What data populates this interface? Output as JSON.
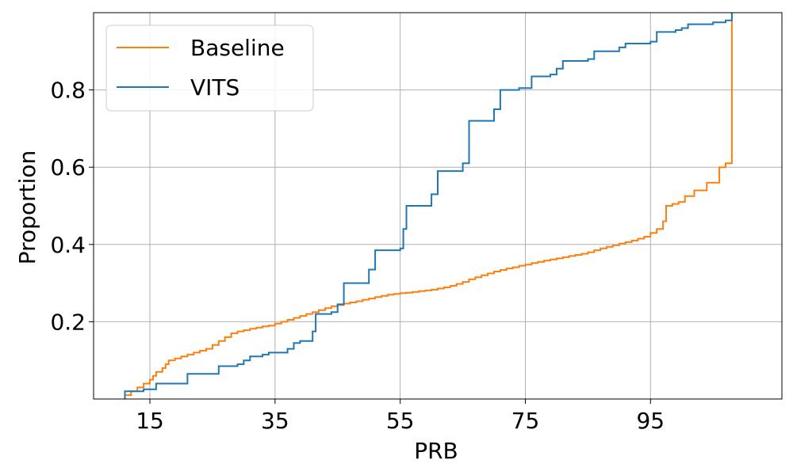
{
  "chart_data": {
    "type": "line",
    "subtype": "step-ecdf",
    "xlabel": "PRB",
    "ylabel": "Proportion",
    "xlim": [
      6,
      116
    ],
    "ylim": [
      0,
      1
    ],
    "xticks": [
      15,
      35,
      55,
      75,
      95
    ],
    "xtick_labels": [
      "15",
      "35",
      "55",
      "75",
      "95"
    ],
    "yticks": [
      0.2,
      0.4,
      0.6,
      0.8
    ],
    "ytick_labels": [
      "0.2",
      "0.4",
      "0.6",
      "0.8"
    ],
    "grid": true,
    "legend_position": "upper-left",
    "series": [
      {
        "name": "Baseline",
        "color": "#ff7f0e",
        "points": [
          [
            11,
            0
          ],
          [
            11,
            0.01
          ],
          [
            12,
            0.02
          ],
          [
            13,
            0.03
          ],
          [
            14,
            0.04
          ],
          [
            15,
            0.05
          ],
          [
            15.5,
            0.06
          ],
          [
            16,
            0.07
          ],
          [
            17,
            0.08
          ],
          [
            17.5,
            0.09
          ],
          [
            18,
            0.1
          ],
          [
            19,
            0.105
          ],
          [
            20,
            0.11
          ],
          [
            21,
            0.115
          ],
          [
            22,
            0.12
          ],
          [
            23,
            0.125
          ],
          [
            24,
            0.13
          ],
          [
            25,
            0.14
          ],
          [
            26,
            0.15
          ],
          [
            27,
            0.16
          ],
          [
            28,
            0.17
          ],
          [
            29,
            0.175
          ],
          [
            30,
            0.178
          ],
          [
            31,
            0.182
          ],
          [
            32,
            0.185
          ],
          [
            33,
            0.188
          ],
          [
            34,
            0.19
          ],
          [
            35,
            0.195
          ],
          [
            36,
            0.2
          ],
          [
            37,
            0.205
          ],
          [
            38,
            0.21
          ],
          [
            39,
            0.215
          ],
          [
            40,
            0.22
          ],
          [
            41,
            0.225
          ],
          [
            42,
            0.23
          ],
          [
            43,
            0.235
          ],
          [
            44,
            0.24
          ],
          [
            45,
            0.243
          ],
          [
            46,
            0.247
          ],
          [
            47,
            0.25
          ],
          [
            48,
            0.253
          ],
          [
            49,
            0.257
          ],
          [
            50,
            0.26
          ],
          [
            51,
            0.264
          ],
          [
            52,
            0.267
          ],
          [
            53,
            0.27
          ],
          [
            54,
            0.272
          ],
          [
            55,
            0.274
          ],
          [
            56,
            0.275
          ],
          [
            57,
            0.277
          ],
          [
            58,
            0.279
          ],
          [
            59,
            0.281
          ],
          [
            60,
            0.283
          ],
          [
            61,
            0.286
          ],
          [
            62,
            0.289
          ],
          [
            63,
            0.293
          ],
          [
            64,
            0.298
          ],
          [
            65,
            0.303
          ],
          [
            66,
            0.31
          ],
          [
            67,
            0.315
          ],
          [
            68,
            0.32
          ],
          [
            69,
            0.325
          ],
          [
            70,
            0.33
          ],
          [
            71,
            0.334
          ],
          [
            72,
            0.338
          ],
          [
            73,
            0.341
          ],
          [
            74,
            0.345
          ],
          [
            75,
            0.348
          ],
          [
            76,
            0.352
          ],
          [
            77,
            0.355
          ],
          [
            78,
            0.358
          ],
          [
            79,
            0.361
          ],
          [
            80,
            0.364
          ],
          [
            81,
            0.367
          ],
          [
            82,
            0.37
          ],
          [
            83,
            0.373
          ],
          [
            84,
            0.376
          ],
          [
            85,
            0.38
          ],
          [
            86,
            0.385
          ],
          [
            87,
            0.39
          ],
          [
            88,
            0.394
          ],
          [
            89,
            0.398
          ],
          [
            90,
            0.402
          ],
          [
            91,
            0.406
          ],
          [
            92,
            0.41
          ],
          [
            93,
            0.415
          ],
          [
            94,
            0.42
          ],
          [
            95,
            0.43
          ],
          [
            96,
            0.44
          ],
          [
            97,
            0.46
          ],
          [
            97.5,
            0.5
          ],
          [
            98.5,
            0.505
          ],
          [
            99.5,
            0.51
          ],
          [
            100.5,
            0.525
          ],
          [
            102,
            0.54
          ],
          [
            104,
            0.56
          ],
          [
            106,
            0.6
          ],
          [
            107,
            0.61
          ],
          [
            108,
            0.61
          ],
          [
            108,
            1
          ]
        ]
      },
      {
        "name": "VITS",
        "color": "#1f77b4",
        "points": [
          [
            11,
            0
          ],
          [
            11,
            0.02
          ],
          [
            14,
            0.025
          ],
          [
            16,
            0.04
          ],
          [
            21,
            0.045
          ],
          [
            21,
            0.065
          ],
          [
            26,
            0.07
          ],
          [
            26,
            0.085
          ],
          [
            29,
            0.09
          ],
          [
            30,
            0.1
          ],
          [
            31,
            0.11
          ],
          [
            33,
            0.115
          ],
          [
            34,
            0.12
          ],
          [
            37,
            0.13
          ],
          [
            38,
            0.145
          ],
          [
            39,
            0.15
          ],
          [
            41,
            0.175
          ],
          [
            41.5,
            0.22
          ],
          [
            44,
            0.225
          ],
          [
            45,
            0.245
          ],
          [
            46,
            0.3
          ],
          [
            50,
            0.335
          ],
          [
            51,
            0.385
          ],
          [
            55,
            0.39
          ],
          [
            55.5,
            0.44
          ],
          [
            56,
            0.5
          ],
          [
            60,
            0.53
          ],
          [
            61,
            0.59
          ],
          [
            65,
            0.61
          ],
          [
            66,
            0.72
          ],
          [
            70,
            0.75
          ],
          [
            71,
            0.8
          ],
          [
            74,
            0.805
          ],
          [
            76,
            0.835
          ],
          [
            79,
            0.84
          ],
          [
            80,
            0.855
          ],
          [
            81,
            0.875
          ],
          [
            85,
            0.88
          ],
          [
            86,
            0.9
          ],
          [
            90,
            0.91
          ],
          [
            91,
            0.92
          ],
          [
            95,
            0.925
          ],
          [
            96,
            0.95
          ],
          [
            99,
            0.955
          ],
          [
            100,
            0.96
          ],
          [
            101,
            0.97
          ],
          [
            105,
            0.975
          ],
          [
            107,
            0.98
          ],
          [
            108,
            0.985
          ],
          [
            108,
            1
          ]
        ]
      }
    ]
  }
}
